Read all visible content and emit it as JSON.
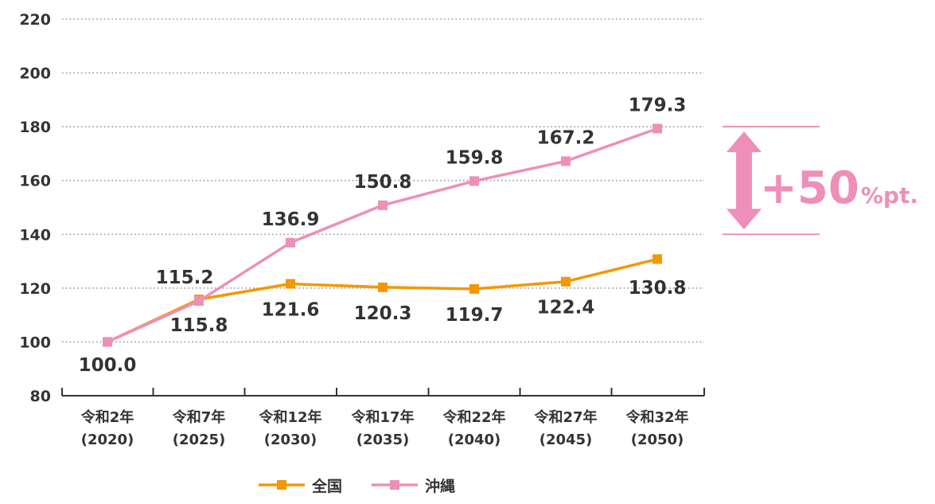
{
  "chart_data": {
    "type": "line",
    "title": "",
    "xlabel": "",
    "ylabel": "",
    "ylim": [
      80,
      220
    ],
    "yticks": [
      80,
      100,
      120,
      140,
      160,
      180,
      200,
      220
    ],
    "grid": true,
    "categories": [
      {
        "line1": "令和2年",
        "line2": "(2020)"
      },
      {
        "line1": "令和7年",
        "line2": "(2025)"
      },
      {
        "line1": "令和12年",
        "line2": "(2030)"
      },
      {
        "line1": "令和17年",
        "line2": "(2035)"
      },
      {
        "line1": "令和22年",
        "line2": "(2040)"
      },
      {
        "line1": "令和27年",
        "line2": "(2045)"
      },
      {
        "line1": "令和32年",
        "line2": "(2050)"
      }
    ],
    "series": [
      {
        "name": "全国",
        "color": "#F39800",
        "values": [
          100.0,
          115.8,
          121.6,
          120.3,
          119.7,
          122.4,
          130.8
        ],
        "labels": [
          "100.0",
          "115.8",
          "121.6",
          "120.3",
          "119.7",
          "122.4",
          "130.8"
        ]
      },
      {
        "name": "沖縄",
        "color": "#EE8FB9",
        "values": [
          100.0,
          115.2,
          136.9,
          150.8,
          159.8,
          167.2,
          179.3
        ],
        "labels": [
          "",
          "115.2",
          "136.9",
          "150.8",
          "159.8",
          "167.2",
          "179.3"
        ]
      }
    ],
    "legend_position": "bottom",
    "annotation": {
      "main": "+50",
      "unit": "%pt.",
      "from": 140,
      "to": 180,
      "color": "#EE8FB9"
    }
  }
}
